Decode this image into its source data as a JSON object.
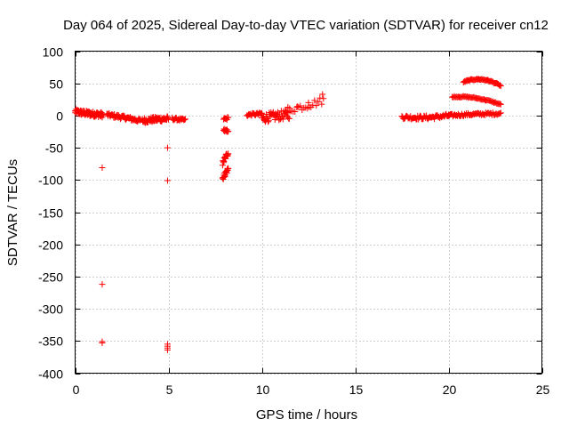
{
  "chart_data": {
    "type": "scatter",
    "title": "Day 064 of 2025, Sidereal Day-to-day VTEC variation (SDTVAR) for receiver cn12",
    "xlabel": "GPS time / hours",
    "ylabel": "SDTVAR / TECUs",
    "xlim": [
      0,
      25
    ],
    "ylim": [
      -400,
      100
    ],
    "xticks": [
      0,
      5,
      10,
      15,
      20,
      25
    ],
    "xtick_labels": [
      "0",
      "5",
      "10",
      "15",
      "20",
      "25"
    ],
    "yticks": [
      100,
      50,
      0,
      -50,
      -100,
      -150,
      -200,
      -250,
      -300,
      -350,
      -400
    ],
    "ytick_labels": [
      "100",
      "50",
      "0",
      "-50",
      "-100",
      "-150",
      "-200",
      "-250",
      "-300",
      "-350",
      "-400"
    ],
    "grid": true,
    "marker": "plus",
    "marker_color": "#ff0000",
    "series": [
      {
        "name": "arc-0.0-1.5",
        "x_range": [
          0.0,
          1.5
        ],
        "y_start": 6,
        "y_mid": 3,
        "y_end": 1,
        "spread": 4,
        "count": 90
      },
      {
        "name": "arc-1.7-3.5",
        "x_range": [
          1.7,
          3.5
        ],
        "y_start": 1,
        "y_mid": -3,
        "y_end": -8,
        "spread": 3,
        "count": 60
      },
      {
        "name": "arc-3.6-5.0",
        "x_range": [
          3.6,
          5.0
        ],
        "y_start": -8,
        "y_mid": -6,
        "y_end": -5,
        "spread": 4,
        "count": 60
      },
      {
        "name": "arc-5.2-5.9",
        "x_range": [
          5.2,
          5.9
        ],
        "y_start": -5,
        "y_mid": -6,
        "y_end": -7,
        "spread": 2,
        "count": 20
      },
      {
        "name": "arc-7.95-8.2-upper",
        "x_range": [
          7.95,
          8.2
        ],
        "y_start": -5,
        "y_mid": -5,
        "y_end": -4,
        "spread": 2,
        "count": 8
      },
      {
        "name": "arc-7.95-8.2-mid",
        "x_range": [
          7.95,
          8.2
        ],
        "y_start": -20,
        "y_mid": -25,
        "y_end": -22,
        "spread": 3,
        "count": 10
      },
      {
        "name": "arc-7.9-8.2-low",
        "x_range": [
          7.9,
          8.2
        ],
        "y_start": -75,
        "y_mid": -65,
        "y_end": -58,
        "spread": 4,
        "count": 18
      },
      {
        "name": "arc-7.9-8.2-bottom",
        "x_range": [
          7.9,
          8.2
        ],
        "y_start": -97,
        "y_mid": -90,
        "y_end": -83,
        "spread": 4,
        "count": 18
      },
      {
        "name": "arc-9.2-10.0",
        "x_range": [
          9.2,
          10.0
        ],
        "y_start": 1,
        "y_mid": 2,
        "y_end": 3,
        "spread": 2,
        "count": 20
      },
      {
        "name": "arc-10.0-11.5",
        "x_range": [
          10.0,
          11.5
        ],
        "y_start": -4,
        "y_mid": -1,
        "y_end": 2,
        "spread": 7,
        "count": 50
      },
      {
        "name": "arc-11.3-13.3",
        "x_range": [
          11.3,
          13.3
        ],
        "y_start": 8,
        "y_mid": 15,
        "y_end": 24,
        "spread": 6,
        "count": 22
      },
      {
        "name": "arc-17.5-20.0",
        "x_range": [
          17.5,
          20.0
        ],
        "y_start": -2,
        "y_mid": -3,
        "y_end": 0,
        "spread": 3,
        "count": 60
      },
      {
        "name": "arc-20.0-22.8",
        "x_range": [
          20.0,
          22.8
        ],
        "y_start": 0,
        "y_mid": 2,
        "y_end": 3,
        "spread": 2,
        "count": 60
      },
      {
        "name": "arc-20.2-22.8",
        "x_range": [
          20.2,
          22.8
        ],
        "y_start": 29,
        "y_mid": 27,
        "y_end": 17,
        "spread": 1,
        "count": 50
      },
      {
        "name": "arc-20.8-22.8",
        "x_range": [
          20.8,
          22.8
        ],
        "y_start": 52,
        "y_mid": 56,
        "y_end": 46,
        "spread": 1,
        "count": 45
      }
    ],
    "isolated_points": [
      {
        "x": 1.45,
        "y": -81
      },
      {
        "x": 1.45,
        "y": -262
      },
      {
        "x": 1.45,
        "y": -351
      },
      {
        "x": 1.45,
        "y": -353
      },
      {
        "x": 4.95,
        "y": -50
      },
      {
        "x": 4.95,
        "y": -101
      },
      {
        "x": 4.95,
        "y": -355
      },
      {
        "x": 4.95,
        "y": -358
      },
      {
        "x": 4.95,
        "y": -361
      },
      {
        "x": 4.95,
        "y": -364
      },
      {
        "x": 13.25,
        "y": 33
      },
      {
        "x": 12.5,
        "y": 20
      },
      {
        "x": 11.9,
        "y": 14
      }
    ]
  }
}
